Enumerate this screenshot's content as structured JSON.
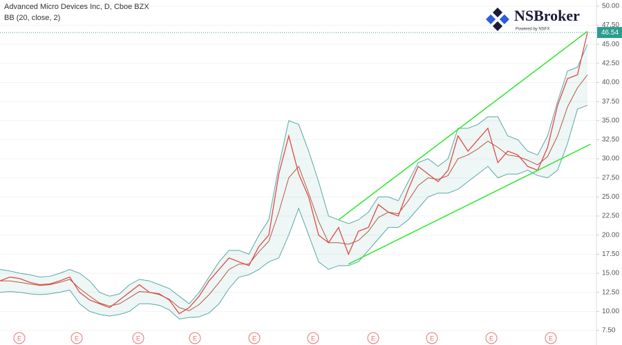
{
  "chart_data": {
    "type": "line",
    "title": "Advanced Micro Devices Inc, D, Cboe BZX",
    "subtitle": "BB (20, close, 2)",
    "watermark": {
      "name": "NSBroker",
      "tagline": "Powered by NSFX"
    },
    "ylim": [
      5.6,
      50.8
    ],
    "yticks": [
      {
        "value": 7.5,
        "label": "7.50"
      },
      {
        "value": 10,
        "label": "10.00"
      },
      {
        "value": 12.5,
        "label": "12.50"
      },
      {
        "value": 15,
        "label": "15.00"
      },
      {
        "value": 17.5,
        "label": "17.50"
      },
      {
        "value": 20,
        "label": "20.00"
      },
      {
        "value": 22.5,
        "label": "22.50"
      },
      {
        "value": 25,
        "label": "25.00"
      },
      {
        "value": 27.5,
        "label": "27.50"
      },
      {
        "value": 30,
        "label": "30.00"
      },
      {
        "value": 32.5,
        "label": "32.50"
      },
      {
        "value": 35,
        "label": "35.00"
      },
      {
        "value": 37.5,
        "label": "37.50"
      },
      {
        "value": 40,
        "label": "40.00"
      },
      {
        "value": 42.5,
        "label": "42.50"
      },
      {
        "value": 45,
        "label": "45.00"
      },
      {
        "value": 47.5,
        "label": "47.50"
      },
      {
        "value": 50,
        "label": "50.00"
      }
    ],
    "grid": true,
    "last_price": 46.54,
    "series": [
      {
        "color": "#e04848",
        "values": [
          14.0,
          14.5,
          14.3,
          13.8,
          13.5,
          13.6,
          14.0,
          14.5,
          12.5,
          11.5,
          11.0,
          10.5,
          11.5,
          12.5,
          13.5,
          12.5,
          12.3,
          11.5,
          9.7,
          10.5,
          12.0,
          14.0,
          15.5,
          17.0,
          16.5,
          16.0,
          18.5,
          20.0,
          28.0,
          33.0,
          28.0,
          25.0,
          20.0,
          19.0,
          21.0,
          17.5,
          20.5,
          21.0,
          24.0,
          23.0,
          22.5,
          26.0,
          29.0,
          28.0,
          27.0,
          28.5,
          33.0,
          31.0,
          32.5,
          34.0,
          29.5,
          31.0,
          30.5,
          29.0,
          28.5,
          31.5,
          37.0,
          40.5,
          41.0,
          46.54
        ]
      },
      {
        "color": "#5aa6a6",
        "values": [
          15.5,
          15.3,
          15.0,
          14.8,
          14.5,
          14.6,
          15.0,
          15.5,
          15.0,
          14.0,
          12.5,
          12.0,
          12.3,
          13.5,
          14.2,
          14.0,
          13.5,
          13.0,
          12.0,
          11.0,
          12.5,
          14.5,
          16.5,
          18.0,
          18.0,
          17.5,
          20.0,
          22.0,
          29.0,
          35.0,
          34.5,
          31.0,
          27.0,
          22.5,
          22.0,
          21.5,
          22.0,
          23.0,
          25.0,
          25.0,
          24.5,
          27.0,
          29.5,
          30.0,
          29.0,
          30.0,
          34.0,
          34.0,
          34.5,
          35.5,
          35.5,
          33.0,
          32.5,
          31.0,
          30.5,
          33.0,
          37.5,
          41.5,
          42.0,
          45.0
        ]
      },
      {
        "color": "#5aa6a6",
        "values": [
          12.5,
          12.6,
          12.5,
          12.3,
          12.2,
          12.3,
          12.5,
          12.8,
          11.0,
          10.0,
          9.6,
          9.4,
          9.6,
          10.0,
          11.0,
          11.0,
          10.8,
          10.2,
          9.0,
          9.2,
          9.3,
          9.8,
          11.0,
          13.0,
          14.5,
          14.8,
          15.5,
          16.5,
          17.0,
          20.0,
          23.5,
          20.0,
          16.5,
          15.5,
          16.0,
          16.0,
          16.5,
          18.0,
          19.5,
          21.0,
          21.0,
          22.0,
          23.5,
          25.0,
          25.5,
          25.5,
          26.0,
          27.0,
          28.0,
          29.0,
          27.5,
          28.0,
          28.0,
          28.5,
          27.8,
          27.5,
          28.5,
          32.0,
          36.5,
          37.0
        ]
      },
      {
        "color": "#b35a3c",
        "values": [
          14.0,
          14.0,
          13.8,
          13.6,
          13.4,
          13.5,
          13.8,
          14.2,
          13.0,
          12.0,
          11.1,
          10.7,
          11.0,
          11.8,
          12.6,
          12.5,
          12.2,
          11.6,
          10.5,
          10.1,
          10.9,
          12.2,
          13.8,
          15.5,
          16.2,
          16.2,
          17.8,
          19.2,
          23.0,
          27.5,
          29.0,
          25.5,
          21.8,
          19.0,
          19.0,
          18.8,
          19.3,
          20.5,
          22.3,
          23.0,
          22.8,
          24.5,
          26.5,
          27.5,
          27.3,
          27.8,
          30.0,
          30.5,
          31.3,
          32.3,
          31.5,
          30.5,
          30.3,
          29.8,
          29.2,
          30.3,
          33.0,
          36.8,
          39.3,
          41.0
        ]
      }
    ],
    "trendlines": [
      {
        "color": "#33e833",
        "x": [
          34,
          59
        ],
        "y": [
          22.0,
          46.7
        ]
      },
      {
        "color": "#33e833",
        "x": [
          35,
          59.3
        ],
        "y": [
          16.2,
          31.9
        ]
      }
    ],
    "event_labels": [
      "E",
      "E",
      "E",
      "E",
      "E",
      "E",
      "E",
      "E",
      "E",
      "E"
    ]
  }
}
